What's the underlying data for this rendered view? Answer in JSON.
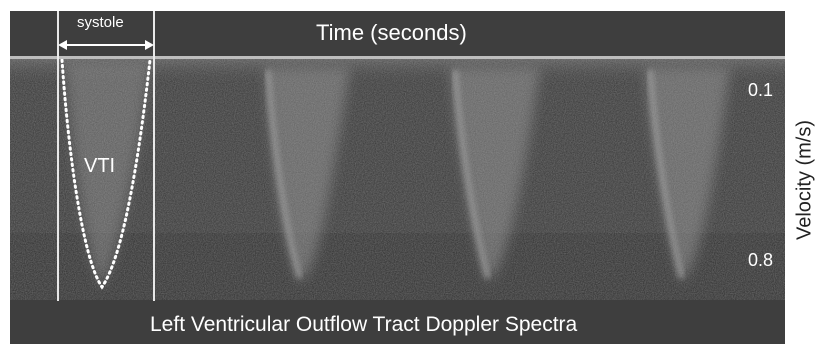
{
  "header": {
    "systole_label": "systole",
    "time_title": "Time (seconds)"
  },
  "plot": {
    "vti_label": "VTI",
    "velocity_ticks": [
      "0.1",
      "0.8"
    ],
    "velocity_axis_title": "Velocity (m/s)"
  },
  "caption": "Left Ventricular Outflow Tract Doppler Spectra"
}
